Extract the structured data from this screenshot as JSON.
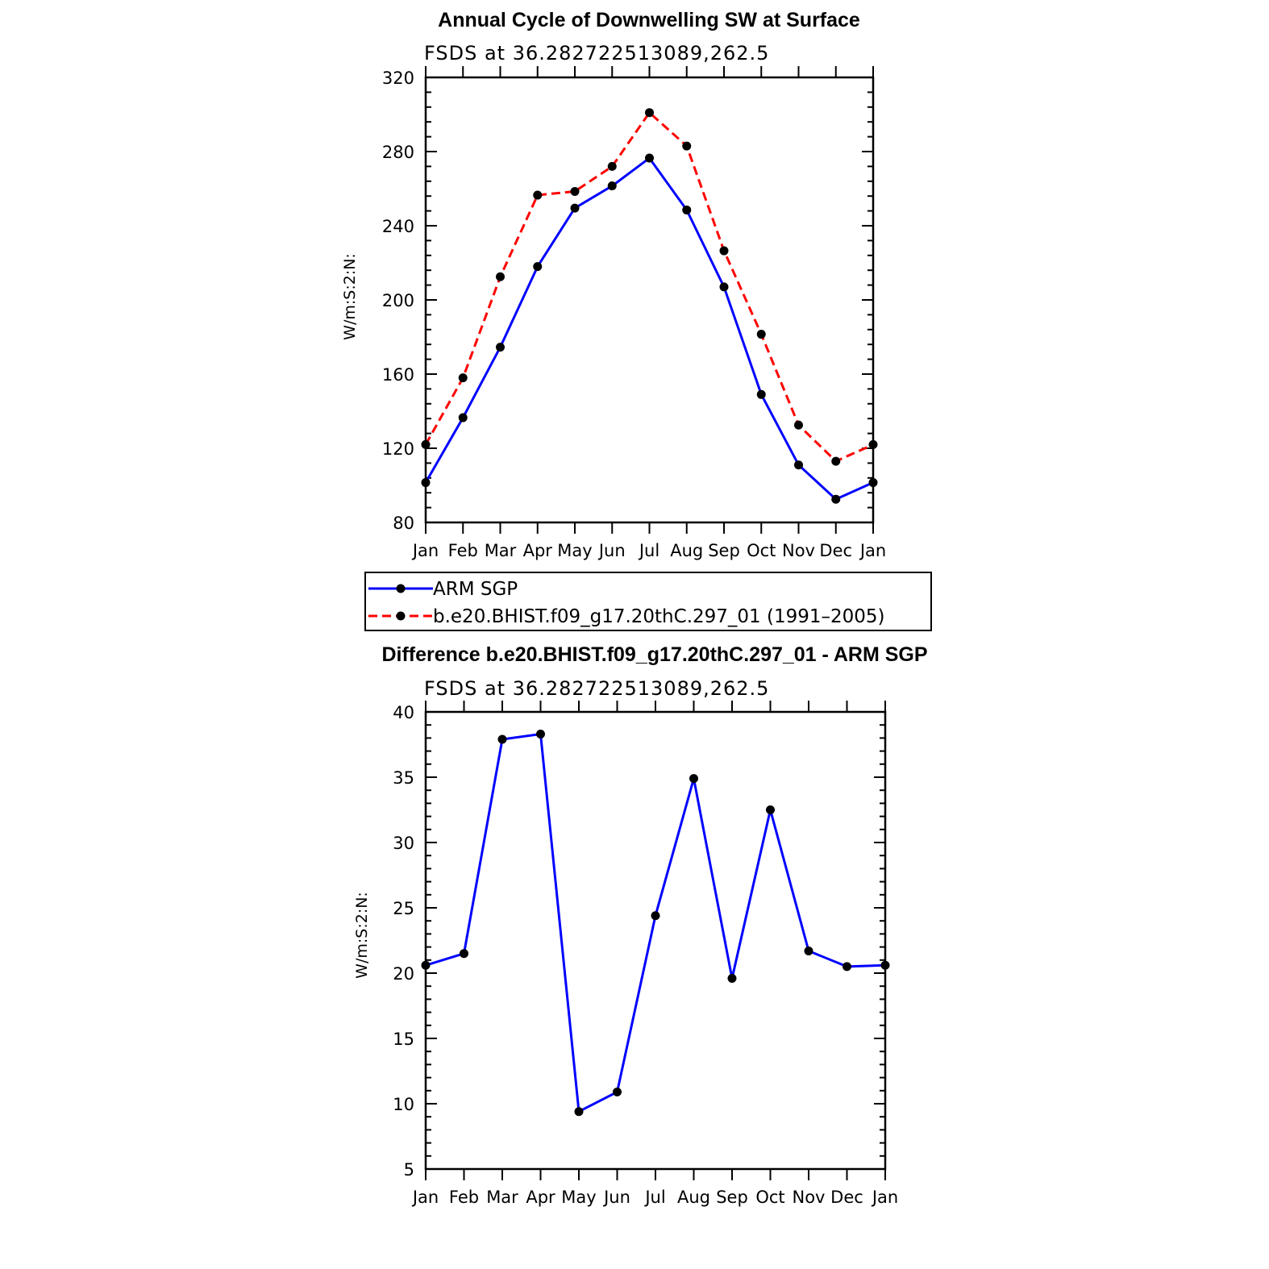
{
  "chart_data": [
    {
      "type": "line",
      "title": "Annual Cycle of Downwelling SW at Surface",
      "subtitle": "FSDS at 36.282722513089,262.5",
      "ylabel": "W/m:S:2:N:",
      "xlabel": "",
      "categories": [
        "Jan",
        "Feb",
        "Mar",
        "Apr",
        "May",
        "Jun",
        "Jul",
        "Aug",
        "Sep",
        "Oct",
        "Nov",
        "Dec",
        "Jan"
      ],
      "ylim": [
        80,
        320
      ],
      "yticks": [
        80,
        120,
        160,
        200,
        240,
        280,
        320
      ],
      "legend_position": "bottom",
      "series": [
        {
          "name": "ARM SGP",
          "color": "#0000ff",
          "dash": "solid",
          "values": [
            101.5,
            136.5,
            174.5,
            218,
            249.5,
            261.5,
            276.5,
            248.5,
            207,
            149,
            111,
            92.5,
            101.5
          ]
        },
        {
          "name": "b.e20.BHIST.f09_g17.20thC.297_01 (1991–2005)",
          "color": "#ff0000",
          "dash": "dashed",
          "values": [
            122,
            158,
            212.5,
            256.5,
            258.5,
            272,
            301,
            283,
            226.5,
            181.5,
            132.5,
            113,
            122
          ]
        }
      ]
    },
    {
      "type": "line",
      "title": "Difference b.e20.BHIST.f09_g17.20thC.297_01 - ARM SGP",
      "subtitle": "FSDS at 36.282722513089,262.5",
      "ylabel": "W/m:S:2:N:",
      "xlabel": "",
      "categories": [
        "Jan",
        "Feb",
        "Mar",
        "Apr",
        "May",
        "Jun",
        "Jul",
        "Aug",
        "Sep",
        "Oct",
        "Nov",
        "Dec",
        "Jan"
      ],
      "ylim": [
        5,
        40
      ],
      "yticks": [
        5,
        10,
        15,
        20,
        25,
        30,
        35,
        40
      ],
      "series": [
        {
          "color": "#0000ff",
          "dash": "solid",
          "values": [
            20.6,
            21.5,
            37.9,
            38.3,
            9.4,
            10.9,
            24.4,
            34.9,
            19.6,
            32.5,
            21.7,
            20.5,
            20.6
          ]
        }
      ]
    }
  ]
}
